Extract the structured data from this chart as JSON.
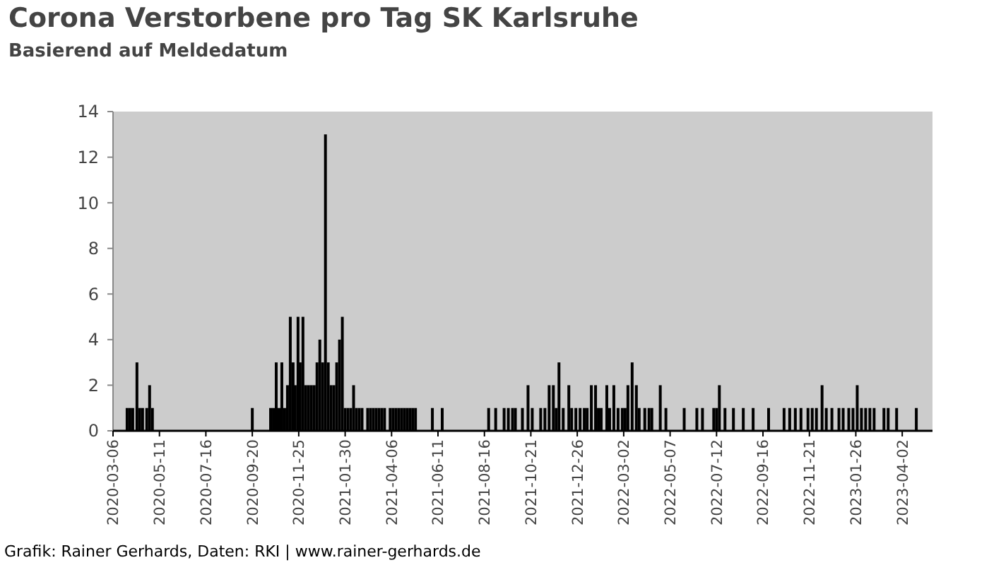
{
  "chart_data": {
    "type": "bar",
    "title": "Corona Verstorbene pro Tag SK Karlsruhe",
    "subtitle": "Basierend auf Meldedatum",
    "annotations": [
      "Grafik: Rainer Gerhards, Daten: RKI | www.rainer-gerhards.de"
    ],
    "x": [
      "2020-03-26",
      "2020-03-30",
      "2020-04-03",
      "2020-04-09",
      "2020-04-13",
      "2020-04-17",
      "2020-04-23",
      "2020-04-27",
      "2020-05-01",
      "2020-09-20",
      "2020-10-16",
      "2020-10-20",
      "2020-10-24",
      "2020-10-28",
      "2020-11-01",
      "2020-11-05",
      "2020-11-09",
      "2020-11-13",
      "2020-11-17",
      "2020-11-20",
      "2020-11-24",
      "2020-11-27",
      "2020-12-01",
      "2020-12-05",
      "2020-12-09",
      "2020-12-13",
      "2020-12-17",
      "2020-12-21",
      "2020-12-25",
      "2020-12-29",
      "2021-01-02",
      "2021-01-06",
      "2021-01-10",
      "2021-01-14",
      "2021-01-18",
      "2021-01-22",
      "2021-01-26",
      "2021-01-30",
      "2021-02-03",
      "2021-02-07",
      "2021-02-11",
      "2021-02-15",
      "2021-02-19",
      "2021-02-23",
      "2021-03-03",
      "2021-03-07",
      "2021-03-11",
      "2021-03-15",
      "2021-03-19",
      "2021-03-23",
      "2021-03-27",
      "2021-04-04",
      "2021-04-08",
      "2021-04-12",
      "2021-04-16",
      "2021-04-20",
      "2021-04-24",
      "2021-04-28",
      "2021-05-02",
      "2021-05-06",
      "2021-05-10",
      "2021-06-03",
      "2021-06-17",
      "2021-08-22",
      "2021-09-01",
      "2021-09-13",
      "2021-09-19",
      "2021-09-25",
      "2021-09-29",
      "2021-10-09",
      "2021-10-17",
      "2021-10-23",
      "2021-11-04",
      "2021-11-10",
      "2021-11-16",
      "2021-11-22",
      "2021-11-26",
      "2021-11-30",
      "2021-12-06",
      "2021-12-14",
      "2021-12-18",
      "2021-12-24",
      "2021-12-30",
      "2022-01-05",
      "2022-01-09",
      "2022-01-15",
      "2022-01-21",
      "2022-01-25",
      "2022-01-29",
      "2022-02-06",
      "2022-02-10",
      "2022-02-16",
      "2022-02-22",
      "2022-02-28",
      "2022-03-04",
      "2022-03-08",
      "2022-03-14",
      "2022-03-20",
      "2022-03-24",
      "2022-04-01",
      "2022-04-07",
      "2022-04-11",
      "2022-04-23",
      "2022-05-01",
      "2022-05-27",
      "2022-06-14",
      "2022-06-22",
      "2022-07-08",
      "2022-07-12",
      "2022-07-16",
      "2022-07-24",
      "2022-08-05",
      "2022-08-19",
      "2022-09-02",
      "2022-09-24",
      "2022-10-16",
      "2022-10-24",
      "2022-11-01",
      "2022-11-09",
      "2022-11-19",
      "2022-11-25",
      "2022-12-01",
      "2022-12-09",
      "2022-12-15",
      "2022-12-23",
      "2023-01-02",
      "2023-01-08",
      "2023-01-16",
      "2023-01-22",
      "2023-01-28",
      "2023-02-03",
      "2023-02-09",
      "2023-02-15",
      "2023-02-21",
      "2023-03-07",
      "2023-03-13",
      "2023-03-25",
      "2023-04-22"
    ],
    "values": [
      1,
      1,
      1,
      3,
      1,
      1,
      1,
      2,
      1,
      1,
      1,
      1,
      3,
      1,
      3,
      1,
      2,
      5,
      3,
      2,
      5,
      3,
      5,
      2,
      2,
      2,
      2,
      3,
      4,
      3,
      13,
      3,
      2,
      2,
      3,
      4,
      5,
      1,
      1,
      1,
      2,
      1,
      1,
      1,
      1,
      1,
      1,
      1,
      1,
      1,
      1,
      1,
      1,
      1,
      1,
      1,
      1,
      1,
      1,
      1,
      1,
      1,
      1,
      1,
      1,
      1,
      1,
      1,
      1,
      1,
      2,
      1,
      1,
      1,
      2,
      2,
      1,
      3,
      1,
      2,
      1,
      1,
      1,
      1,
      1,
      2,
      2,
      1,
      1,
      2,
      1,
      2,
      1,
      1,
      1,
      2,
      3,
      2,
      1,
      1,
      1,
      1,
      2,
      1,
      1,
      1,
      1,
      1,
      1,
      2,
      1,
      1,
      1,
      1,
      1,
      1,
      1,
      1,
      1,
      1,
      1,
      1,
      2,
      1,
      1,
      1,
      1,
      1,
      1,
      2,
      1,
      1,
      1,
      1,
      1,
      1,
      1,
      1
    ],
    "color": "#000000",
    "xlim": [
      "2020-03-06",
      "2023-05-15"
    ],
    "xticks": [
      "2020-03-06",
      "2020-05-11",
      "2020-07-16",
      "2020-09-20",
      "2020-11-25",
      "2021-01-30",
      "2021-04-06",
      "2021-06-11",
      "2021-08-16",
      "2021-10-21",
      "2021-12-26",
      "2022-03-02",
      "2022-05-07",
      "2022-07-12",
      "2022-09-16",
      "2022-11-21",
      "2023-01-26",
      "2023-04-02"
    ],
    "ylim": [
      0,
      14
    ],
    "yticks": [
      0,
      2,
      4,
      6,
      8,
      10,
      12,
      14
    ]
  }
}
